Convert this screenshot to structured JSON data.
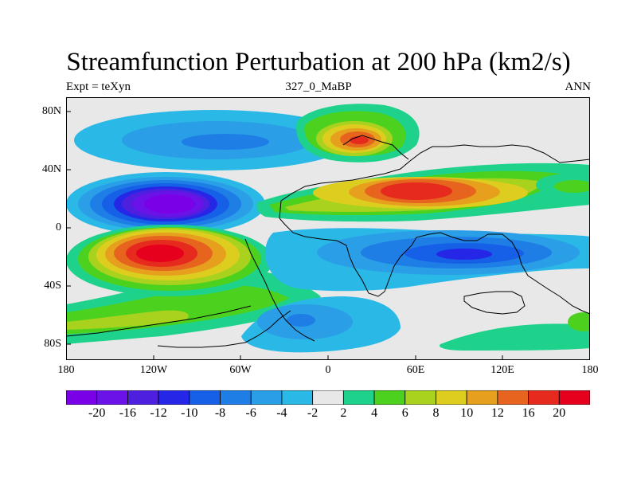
{
  "title": "Streamfunction Perturbation at 200 hPa (km2/s)",
  "subtitle_left": "Expt = teXyn",
  "subtitle_center": "327_0_MaBP",
  "subtitle_right": "ANN",
  "y_ticks": [
    "80N",
    "40N",
    "0",
    "40S",
    "80S"
  ],
  "x_ticks": [
    "180",
    "120W",
    "60W",
    "0",
    "60E",
    "120E",
    "180"
  ],
  "colorbar": {
    "labels": [
      "-20",
      "-16",
      "-12",
      "-10",
      "-8",
      "-6",
      "-4",
      "-2",
      "2",
      "4",
      "6",
      "8",
      "10",
      "12",
      "16",
      "20"
    ],
    "colors": [
      "#7a00e6",
      "#6a12e8",
      "#4f1fe0",
      "#2626e6",
      "#1560e6",
      "#1e7ee6",
      "#2a9ee6",
      "#2ab8e6",
      "#e8e8e8",
      "#1ed28c",
      "#4cd21e",
      "#a8d21e",
      "#dccd1e",
      "#e6a01e",
      "#e6641e",
      "#e62a1e",
      "#e6001e"
    ]
  }
}
